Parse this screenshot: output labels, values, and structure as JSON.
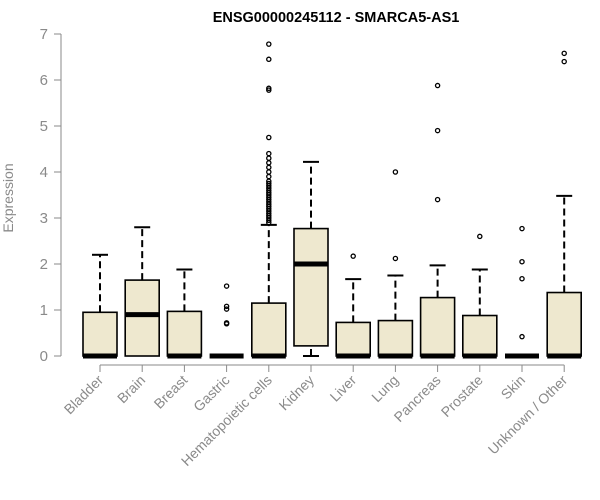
{
  "chart_data": {
    "type": "boxplot",
    "title": "ENSG00000245112 - SMARCA5-AS1",
    "xlabel": "",
    "ylabel": "Expression",
    "ylim": [
      0,
      7
    ],
    "yticks": [
      0,
      1,
      2,
      3,
      4,
      5,
      6,
      7
    ],
    "grid": false,
    "colors": {
      "box_fill": "#EEE8CF",
      "stroke": "#000000",
      "axis": "#8a8a8a",
      "text": "#8a8a8a",
      "title": "#000000"
    },
    "categories": [
      "Bladder",
      "Brain",
      "Breast",
      "Gastric",
      "Hematopoietic cells",
      "Kidney",
      "Liver",
      "Lung",
      "Pancreas",
      "Prostate",
      "Skin",
      "Unknown / Other"
    ],
    "boxes": [
      {
        "category": "Bladder",
        "min": 0,
        "q1": 0,
        "median": 0,
        "q3": 0.95,
        "max": 2.2,
        "outliers": []
      },
      {
        "category": "Brain",
        "min": 0,
        "q1": 0,
        "median": 0.9,
        "q3": 1.65,
        "max": 2.8,
        "outliers": []
      },
      {
        "category": "Breast",
        "min": 0,
        "q1": 0,
        "median": 0,
        "q3": 0.97,
        "max": 1.88,
        "outliers": []
      },
      {
        "category": "Gastric",
        "min": 0,
        "q1": 0,
        "median": 0,
        "q3": 0,
        "max": 0,
        "outliers": [
          0.7,
          0.72,
          1.02,
          1.08,
          1.52
        ]
      },
      {
        "category": "Hematopoietic cells",
        "min": 0,
        "q1": 0,
        "median": 0,
        "q3": 1.15,
        "max": 2.85,
        "outliers": [
          2.9,
          2.95,
          3.0,
          3.05,
          3.1,
          3.15,
          3.2,
          3.25,
          3.3,
          3.35,
          3.4,
          3.45,
          3.5,
          3.55,
          3.6,
          3.65,
          3.7,
          3.75,
          3.8,
          3.9,
          4.0,
          4.1,
          4.2,
          4.3,
          4.4,
          4.75,
          5.78,
          5.82,
          6.45,
          6.78
        ]
      },
      {
        "category": "Kidney",
        "min": 0,
        "q1": 0.22,
        "median": 2.0,
        "q3": 2.77,
        "max": 4.22,
        "outliers": []
      },
      {
        "category": "Liver",
        "min": 0,
        "q1": 0,
        "median": 0,
        "q3": 0.73,
        "max": 1.67,
        "outliers": [
          2.17
        ]
      },
      {
        "category": "Lung",
        "min": 0,
        "q1": 0,
        "median": 0,
        "q3": 0.77,
        "max": 1.75,
        "outliers": [
          2.12,
          4.0
        ]
      },
      {
        "category": "Pancreas",
        "min": 0,
        "q1": 0,
        "median": 0,
        "q3": 1.27,
        "max": 1.97,
        "outliers": [
          3.4,
          4.9,
          5.88
        ]
      },
      {
        "category": "Prostate",
        "min": 0,
        "q1": 0,
        "median": 0,
        "q3": 0.88,
        "max": 1.88,
        "outliers": [
          2.6
        ]
      },
      {
        "category": "Skin",
        "min": 0,
        "q1": 0,
        "median": 0,
        "q3": 0,
        "max": 0,
        "outliers": [
          0.42,
          1.68,
          2.05,
          2.77
        ]
      },
      {
        "category": "Unknown / Other",
        "min": 0,
        "q1": 0,
        "median": 0,
        "q3": 1.38,
        "max": 3.48,
        "outliers": [
          6.4,
          6.58
        ]
      }
    ]
  }
}
